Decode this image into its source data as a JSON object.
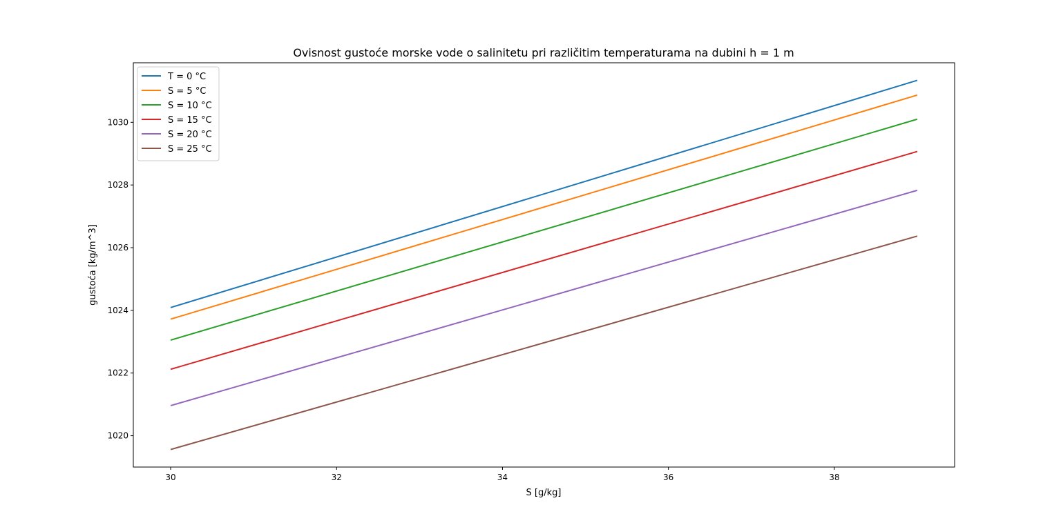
{
  "chart_data": {
    "type": "line",
    "title": "Ovisnost gustoće morske vode o salinitetu pri različitim temperaturama na dubini h = 1 m",
    "xlabel": "S [g/kg]",
    "ylabel": "gustoća [kg/m^3]",
    "xlim": [
      29.55,
      39.45
    ],
    "ylim": [
      1019.0,
      1031.9
    ],
    "xticks": [
      30,
      32,
      34,
      36,
      38
    ],
    "yticks": [
      1020,
      1022,
      1024,
      1026,
      1028,
      1030
    ],
    "grid": false,
    "legend_position": "top-left",
    "x": [
      30,
      39
    ],
    "series": [
      {
        "name": "T = 0 °C",
        "color": "#1f77b4",
        "values": [
          1024.09,
          1031.34
        ]
      },
      {
        "name": "S = 5 °C",
        "color": "#ff7f0e",
        "values": [
          1023.72,
          1030.87
        ]
      },
      {
        "name": "S = 10 °C",
        "color": "#2ca02c",
        "values": [
          1023.05,
          1030.1
        ]
      },
      {
        "name": "S = 15 °C",
        "color": "#d62728",
        "values": [
          1022.12,
          1029.07
        ]
      },
      {
        "name": "S = 20 °C",
        "color": "#9467bd",
        "values": [
          1020.96,
          1027.83
        ]
      },
      {
        "name": "S = 25 °C",
        "color": "#8c564b",
        "values": [
          1019.56,
          1026.37
        ]
      }
    ]
  }
}
